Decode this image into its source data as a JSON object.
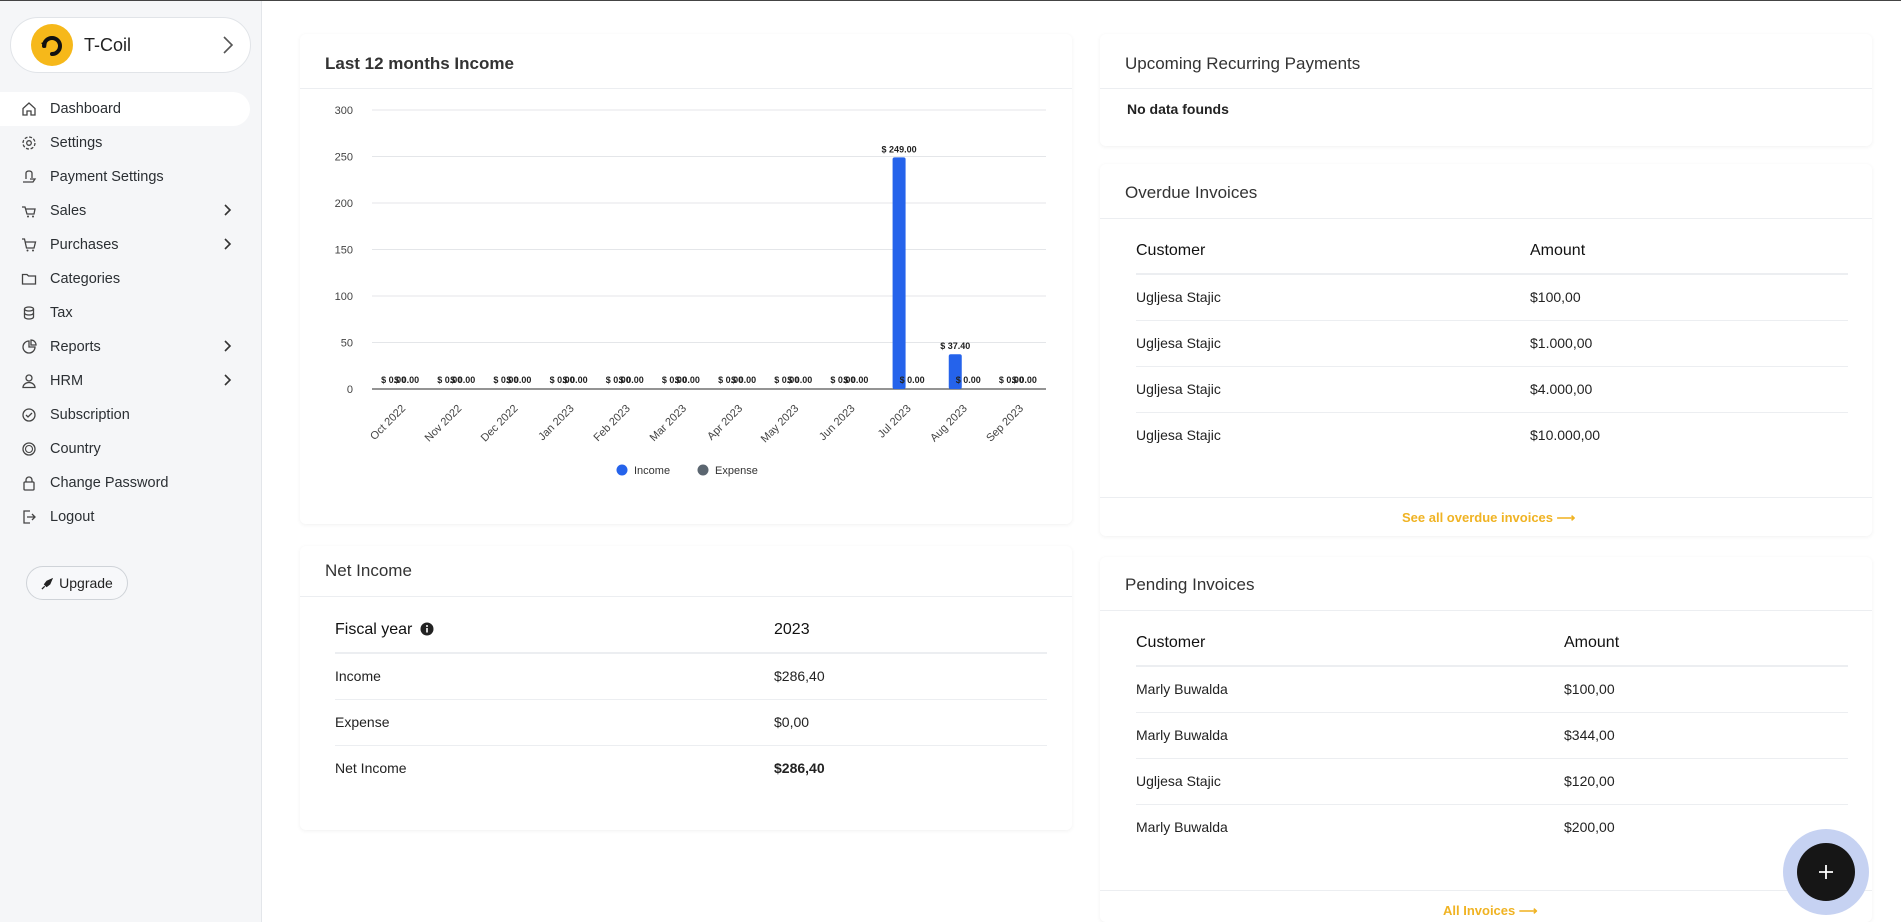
{
  "brand": {
    "name": "T-Coil",
    "logo_icon": "brand-logo-icon",
    "accent": "#f6b81a"
  },
  "sidebar": {
    "items": [
      {
        "label": "Dashboard",
        "icon": "home-icon",
        "active": true,
        "has_children": false
      },
      {
        "label": "Settings",
        "icon": "gear-icon",
        "active": false,
        "has_children": false
      },
      {
        "label": "Payment Settings",
        "icon": "hand-coin-icon",
        "active": false,
        "has_children": false
      },
      {
        "label": "Sales",
        "icon": "cart-icon",
        "active": false,
        "has_children": true
      },
      {
        "label": "Purchases",
        "icon": "shopping-cart-icon",
        "active": false,
        "has_children": true
      },
      {
        "label": "Categories",
        "icon": "folder-icon",
        "active": false,
        "has_children": false
      },
      {
        "label": "Tax",
        "icon": "coins-icon",
        "active": false,
        "has_children": false
      },
      {
        "label": "Reports",
        "icon": "pie-icon",
        "active": false,
        "has_children": true
      },
      {
        "label": "HRM",
        "icon": "user-icon",
        "active": false,
        "has_children": true
      },
      {
        "label": "Subscription",
        "icon": "subscription-icon",
        "active": false,
        "has_children": false
      },
      {
        "label": "Country",
        "icon": "globe-icon",
        "active": false,
        "has_children": false
      },
      {
        "label": "Change Password",
        "icon": "lock-icon",
        "active": false,
        "has_children": false
      },
      {
        "label": "Logout",
        "icon": "logout-icon",
        "active": false,
        "has_children": false
      }
    ],
    "upgrade_label": "Upgrade"
  },
  "income_card": {
    "title": "Last 12 months Income",
    "legend": [
      "Income",
      "Expense"
    ]
  },
  "chart_data": {
    "type": "bar",
    "title": "Last 12 months Income",
    "categories": [
      "Oct 2022",
      "Nov 2022",
      "Dec 2022",
      "Jan 2023",
      "Feb 2023",
      "Mar 2023",
      "Apr 2023",
      "May 2023",
      "Jun 2023",
      "Jul 2023",
      "Aug 2023",
      "Sep 2023"
    ],
    "series": [
      {
        "name": "Income",
        "color": "#2563eb",
        "values": [
          0,
          0,
          0,
          0,
          0,
          0,
          0,
          0,
          0,
          249,
          37.4,
          0
        ]
      },
      {
        "name": "Expense",
        "color": "#5b6670",
        "values": [
          0,
          0,
          0,
          0,
          0,
          0,
          0,
          0,
          0,
          0,
          0,
          0
        ]
      }
    ],
    "bar_labels": [
      "$ 0.00",
      "$ 0.00",
      "$ 0.00",
      "$ 0.00",
      "$ 0.00",
      "$ 0.00",
      "$ 0.00",
      "$ 0.00",
      "$ 0.00",
      "$ 0.00",
      "$ 0.00",
      "$ 0.00",
      "$ 0.00",
      "$ 0.00",
      "$ 0.00",
      "$ 0.00",
      "$ 0.00",
      "$ 0.00",
      "$ 249.00",
      "$ 0.00",
      "$ 37.40",
      "$ 0.00",
      "$ 0.00",
      "$ 0.00"
    ],
    "y_ticks": [
      0,
      50,
      100,
      150,
      200,
      250,
      300
    ],
    "ylim": [
      0,
      300
    ],
    "grid": true,
    "legend_position": "bottom-center"
  },
  "net_income": {
    "title": "Net Income",
    "header": {
      "label": "Fiscal year",
      "value": "2023",
      "info_icon": "info-icon"
    },
    "rows": [
      {
        "label": "Income",
        "value": "$286,40",
        "bold": false
      },
      {
        "label": "Expense",
        "value": "$0,00",
        "bold": false
      },
      {
        "label": "Net Income",
        "value": "$286,40",
        "bold": true
      }
    ]
  },
  "recurring": {
    "title": "Upcoming Recurring Payments",
    "empty_text": "No data founds"
  },
  "overdue": {
    "title": "Overdue Invoices",
    "columns": [
      "Customer",
      "Amount"
    ],
    "rows": [
      {
        "customer": "Ugljesa Stajic",
        "amount": "$100,00"
      },
      {
        "customer": "Ugljesa Stajic",
        "amount": "$1.000,00"
      },
      {
        "customer": "Ugljesa Stajic",
        "amount": "$4.000,00"
      },
      {
        "customer": "Ugljesa Stajic",
        "amount": "$10.000,00"
      }
    ],
    "link": "See all overdue invoices ⟶"
  },
  "pending": {
    "title": "Pending Invoices",
    "columns": [
      "Customer",
      "Amount"
    ],
    "rows": [
      {
        "customer": "Marly Buwalda",
        "amount": "$100,00"
      },
      {
        "customer": "Marly Buwalda",
        "amount": "$344,00"
      },
      {
        "customer": "Ugljesa Stajic",
        "amount": "$120,00"
      },
      {
        "customer": "Marly Buwalda",
        "amount": "$200,00"
      }
    ],
    "link": "All Invoices ⟶"
  },
  "fab": {
    "label": "+",
    "icon": "plus-icon"
  }
}
